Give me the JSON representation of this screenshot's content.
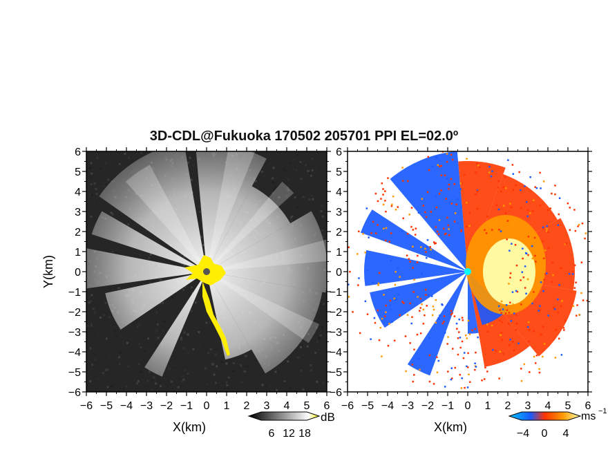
{
  "title": "3D-CDL@Fukuoka 170502 205701 PPI EL=02.0º",
  "panels": [
    {
      "id": "left",
      "xlabel": "X(km)",
      "ylabel": "Y(km)",
      "colorbar": {
        "unit": "dB",
        "ticks": [
          "6",
          "12",
          "18"
        ]
      }
    },
    {
      "id": "right",
      "xlabel": "X(km)",
      "ylabel": "",
      "colorbar": {
        "unit": "ms",
        "unit_sup": "−1",
        "ticks": [
          "−4",
          "0",
          "4"
        ]
      }
    }
  ],
  "chart_data": [
    {
      "type": "heatmap",
      "variable": "intensity",
      "xlabel": "X(km)",
      "ylabel": "Y(km)",
      "xlim": [
        -6,
        6
      ],
      "ylim": [
        -6,
        6
      ],
      "xticks": [
        -6,
        -5,
        -4,
        -3,
        -2,
        -1,
        0,
        1,
        2,
        3,
        4,
        5,
        6
      ],
      "yticks": [
        -6,
        -5,
        -4,
        -3,
        -2,
        -1,
        0,
        1,
        2,
        3,
        4,
        5,
        6
      ],
      "colorbar": {
        "unit": "dB",
        "ticks": [
          6,
          12,
          18
        ],
        "colors": [
          "#000000",
          "#ffffff",
          "#ffee00"
        ]
      }
    },
    {
      "type": "heatmap",
      "variable": "radial velocity",
      "xlabel": "X(km)",
      "xlim": [
        -6,
        6
      ],
      "ylim": [
        -6,
        6
      ],
      "xticks": [
        -6,
        -5,
        -4,
        -3,
        -2,
        -1,
        0,
        1,
        2,
        3,
        4,
        5,
        6
      ],
      "yticks": [
        -6,
        -5,
        -4,
        -3,
        -2,
        -1,
        0,
        1,
        2,
        3,
        4,
        5,
        6
      ],
      "colorbar": {
        "unit": "ms−1",
        "ticks": [
          -4,
          0,
          4
        ],
        "colors": [
          "#00c8ff",
          "#1a5aff",
          "#ff3300",
          "#ff9900",
          "#ffffaa"
        ]
      }
    }
  ],
  "colors": {
    "yellow": "#ffee00",
    "radar_left": "#555555",
    "radar_right": "#00ffff"
  }
}
